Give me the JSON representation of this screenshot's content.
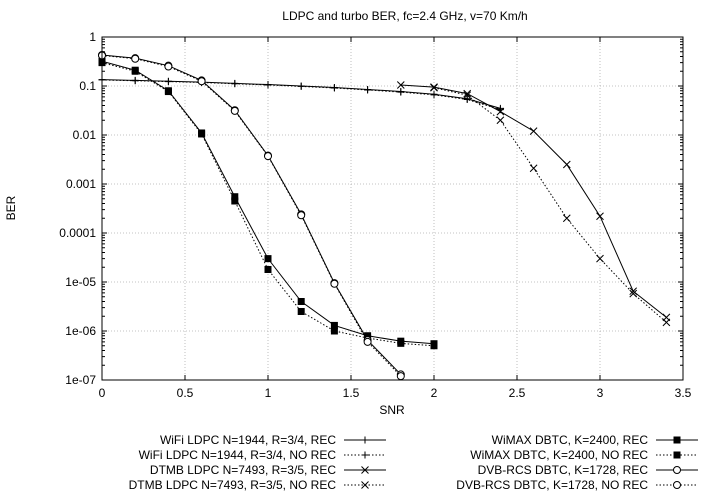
{
  "chart_data": {
    "type": "line",
    "title": "LDPC and turbo BER, fc=2.4 GHz, v=70 Km/h",
    "xlabel": "SNR",
    "ylabel": "BER",
    "xlim": [
      0,
      3.5
    ],
    "ylim": [
      1e-07,
      1
    ],
    "yscale": "log",
    "grid": true,
    "legend_position": "bottom",
    "x_ticks": [
      {
        "value": 0,
        "label": "0"
      },
      {
        "value": 0.5,
        "label": "0.5"
      },
      {
        "value": 1,
        "label": "1"
      },
      {
        "value": 1.5,
        "label": "1.5"
      },
      {
        "value": 2,
        "label": "2"
      },
      {
        "value": 2.5,
        "label": "2.5"
      },
      {
        "value": 3,
        "label": "3"
      },
      {
        "value": 3.5,
        "label": "3.5"
      }
    ],
    "y_ticks": [
      {
        "value": 1,
        "label": "1"
      },
      {
        "value": 0.1,
        "label": "0.1"
      },
      {
        "value": 0.01,
        "label": "0.01"
      },
      {
        "value": 0.001,
        "label": "0.001"
      },
      {
        "value": 0.0001,
        "label": "0.0001"
      },
      {
        "value": 1e-05,
        "label": "1e-05"
      },
      {
        "value": 1e-06,
        "label": "1e-06"
      },
      {
        "value": 1e-07,
        "label": "1e-07"
      }
    ],
    "series": [
      {
        "name": "WiFi LDPC N=1944, R=3/4, REC",
        "marker": "plus",
        "dash": "solid",
        "x": [
          0,
          0.2,
          0.4,
          0.6,
          0.8,
          1.0,
          1.2,
          1.4,
          1.6,
          1.8,
          2.0,
          2.2,
          2.4
        ],
        "y": [
          0.135,
          0.13,
          0.125,
          0.12,
          0.113,
          0.107,
          0.1,
          0.093,
          0.085,
          0.077,
          0.068,
          0.055,
          0.035
        ]
      },
      {
        "name": "WiFi LDPC N=1944, R=3/4, NO REC",
        "marker": "plus",
        "dash": "dotted",
        "x": [
          0,
          0.2,
          0.4,
          0.6,
          0.8,
          1.0,
          1.2,
          1.4,
          1.6,
          1.8,
          2.0,
          2.2,
          2.4
        ],
        "y": [
          0.133,
          0.128,
          0.123,
          0.118,
          0.111,
          0.105,
          0.098,
          0.091,
          0.083,
          0.075,
          0.066,
          0.053,
          0.033
        ]
      },
      {
        "name": "DTMB LDPC N=7493, R=3/5, REC",
        "marker": "x",
        "dash": "solid",
        "x": [
          1.8,
          2.0,
          2.2,
          2.4,
          2.6,
          2.8,
          3.0,
          3.2,
          3.4
        ],
        "y": [
          0.105,
          0.095,
          0.07,
          0.03,
          0.012,
          0.0025,
          0.00022,
          6.5e-06,
          1.9e-06
        ]
      },
      {
        "name": "DTMB LDPC N=7493, R=3/5, NO REC",
        "marker": "x",
        "dash": "dotted",
        "x": [
          2.0,
          2.2,
          2.4,
          2.6,
          2.8,
          3.0,
          3.2,
          3.4
        ],
        "y": [
          0.092,
          0.065,
          0.02,
          0.0021,
          0.0002,
          3e-05,
          5.8e-06,
          1.5e-06
        ]
      },
      {
        "name": "WiMAX DBTC, K=2400, REC",
        "marker": "square",
        "dash": "solid",
        "x": [
          0,
          0.2,
          0.4,
          0.6,
          0.8,
          1.0,
          1.2,
          1.4,
          1.6,
          1.8,
          2.0
        ],
        "y": [
          0.32,
          0.21,
          0.08,
          0.011,
          0.00055,
          3e-05,
          4e-06,
          1.3e-06,
          8e-07,
          6.2e-07,
          5.5e-07
        ]
      },
      {
        "name": "WiMAX DBTC, K=2400, NO REC",
        "marker": "square",
        "dash": "dotted",
        "x": [
          0,
          0.2,
          0.4,
          0.6,
          0.8,
          1.0,
          1.2,
          1.4,
          1.6,
          1.8,
          2.0
        ],
        "y": [
          0.3,
          0.2,
          0.077,
          0.0105,
          0.00045,
          1.8e-05,
          2.5e-06,
          1e-06,
          7.2e-07,
          5.6e-07,
          5e-07
        ]
      },
      {
        "name": "DVB-RCS DBTC, K=1728, REC",
        "marker": "circle",
        "dash": "solid",
        "x": [
          0,
          0.2,
          0.4,
          0.6,
          0.8,
          1.0,
          1.2,
          1.4,
          1.6,
          1.8
        ],
        "y": [
          0.43,
          0.37,
          0.26,
          0.13,
          0.032,
          0.0038,
          0.00024,
          9.5e-06,
          6.5e-07,
          1.3e-07
        ]
      },
      {
        "name": "DVB-RCS DBTC, K=1728, NO REC",
        "marker": "circle",
        "dash": "dotted",
        "x": [
          0,
          0.2,
          0.4,
          0.6,
          0.8,
          1.0,
          1.2,
          1.4,
          1.6,
          1.8
        ],
        "y": [
          0.42,
          0.36,
          0.25,
          0.125,
          0.031,
          0.0037,
          0.00023,
          9.2e-06,
          6e-07,
          1.2e-07
        ]
      }
    ]
  }
}
